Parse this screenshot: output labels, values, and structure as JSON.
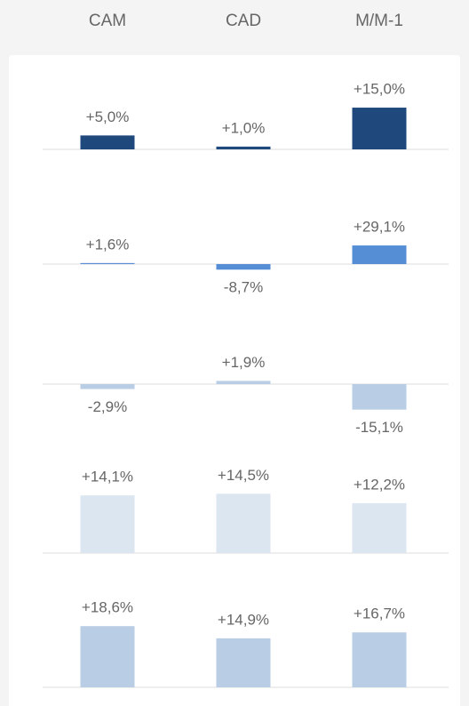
{
  "chart_data": {
    "type": "bar",
    "categories": [
      "CAM",
      "CAD",
      "M/M-1"
    ],
    "series": [
      {
        "color": "#1f497d",
        "values": [
          5.0,
          1.0,
          15.0
        ],
        "value_labels": [
          "+5,0%",
          "+1,0%",
          "+15,0%"
        ]
      },
      {
        "color": "#558ed5",
        "values": [
          1.6,
          -8.7,
          29.1
        ],
        "value_labels": [
          "+1,6%",
          "-8,7%",
          "+29,1%"
        ]
      },
      {
        "color": "#b9cde5",
        "values": [
          -2.9,
          1.9,
          -15.1
        ],
        "value_labels": [
          "-2,9%",
          "+1,9%",
          "-15,1%"
        ]
      },
      {
        "color": "#dce6f1",
        "values": [
          14.1,
          14.5,
          12.2
        ],
        "value_labels": [
          "+14,1%",
          "+14,5%",
          "+12,2%"
        ]
      },
      {
        "color": "#b9cde5",
        "values": [
          18.6,
          14.9,
          16.7
        ],
        "value_labels": [
          "+18,6%",
          "+14,9%",
          "+16,7%"
        ]
      }
    ]
  }
}
